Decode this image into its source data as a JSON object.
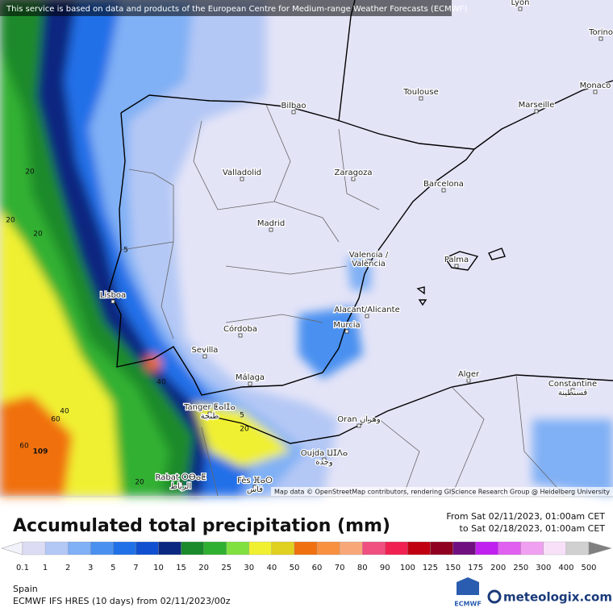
{
  "header": {
    "notice": "This service is based on data and products of the European Centre for Medium-range Weather Forecasts (ECMWF)"
  },
  "map": {
    "cities": [
      {
        "name": "Lyon"
      },
      {
        "name": "Torino"
      },
      {
        "name": "Monaco"
      },
      {
        "name": "Toulouse"
      },
      {
        "name": "Marseille"
      },
      {
        "name": "Bilbao"
      },
      {
        "name": "Valladolid"
      },
      {
        "name": "Zaragoza"
      },
      {
        "name": "Barcelona"
      },
      {
        "name": "Madrid"
      },
      {
        "name": "Valencia /",
        "name2": "València"
      },
      {
        "name": "Palma"
      },
      {
        "name": "Lisboa"
      },
      {
        "name": "Alacant/Alicante"
      },
      {
        "name": "Murcia"
      },
      {
        "name": "Córdoba"
      },
      {
        "name": "Sevilla"
      },
      {
        "name": "Málaga"
      },
      {
        "name": "Alger"
      },
      {
        "name": "Constantine",
        "name2": "قسنطينة"
      },
      {
        "name": "Tanger ⵟⴰⵏⵊⴰ",
        "name2": "طنجة"
      },
      {
        "name": "Oran وهران"
      },
      {
        "name": "Oujda ⵡⵊⴷⴰ",
        "name2": "وجدة"
      },
      {
        "name": "Rabat ⵔⴱⴰⵟ",
        "name2": "الرباط"
      },
      {
        "name": "Fès ⴼⴰⵙ",
        "name2": "فاس"
      }
    ],
    "contour_labels": [
      "20",
      "20",
      "20",
      "5",
      "40",
      "40",
      "60",
      "60",
      "109",
      "5",
      "20",
      "20"
    ],
    "attribution": "Map data © OpenStreetMap contributors, rendering GIScience Research Group @ Heidelberg University"
  },
  "legend": {
    "title": "Accumulated total precipitation (mm)",
    "period_from": "From Sat 02/11/2023, 01:00am CET",
    "period_to": "to Sat 02/18/2023, 01:00am CET",
    "ticks": [
      0.1,
      1,
      2,
      3,
      5,
      7,
      10,
      15,
      20,
      25,
      30,
      40,
      50,
      60,
      70,
      80,
      90,
      100,
      125,
      150,
      175,
      200,
      250,
      300,
      400,
      500
    ],
    "colors": [
      "#f2f2fa",
      "#dcdcf5",
      "#b4c8f5",
      "#80b0f5",
      "#4a90f0",
      "#2070e8",
      "#1050d0",
      "#0a2880",
      "#1a8a2a",
      "#30b030",
      "#80e040",
      "#f0f030",
      "#e0d020",
      "#f07010",
      "#f89040",
      "#f8a878",
      "#f05080",
      "#f02050",
      "#c00010",
      "#900020",
      "#701080",
      "#c020f0",
      "#e060f0",
      "#f0a0f0",
      "#f8e0f8",
      "#d0d0d0",
      "#808080"
    ]
  },
  "footer": {
    "region": "Spain",
    "model": "ECMWF IFS HRES (10 days) from 02/11/2023/00z",
    "ecmwf_logo": "ECMWF",
    "brand": "meteologix.com"
  }
}
